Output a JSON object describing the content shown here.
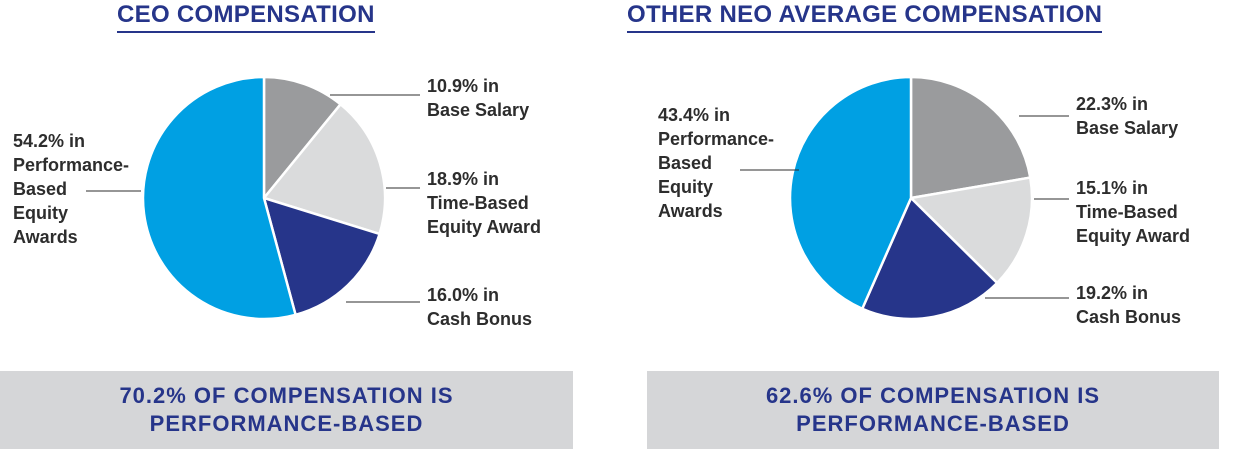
{
  "chart_data": [
    {
      "type": "pie",
      "title": "CEO COMPENSATION",
      "slices": [
        {
          "label": "Base Salary",
          "value": 10.9,
          "color": "#9a9b9d",
          "display": [
            "10.9% in",
            "Base Salary"
          ]
        },
        {
          "label": "Time-Based Equity Award",
          "value": 18.9,
          "color": "#dadbdc",
          "display": [
            "18.9% in",
            "Time-Based",
            "Equity Award"
          ]
        },
        {
          "label": "Cash Bonus",
          "value": 16.0,
          "color": "#26358a",
          "display": [
            "16.0% in",
            "Cash Bonus"
          ]
        },
        {
          "label": "Performance-Based Equity Awards",
          "value": 54.2,
          "color": "#00a0e3",
          "display": [
            "54.2% in",
            "Performance-",
            "Based",
            "Equity",
            "Awards"
          ]
        }
      ],
      "callout": [
        "70.2% OF COMPENSATION IS",
        "PERFORMANCE-BASED"
      ]
    },
    {
      "type": "pie",
      "title": "OTHER NEO AVERAGE COMPENSATION",
      "slices": [
        {
          "label": "Base Salary",
          "value": 22.3,
          "color": "#9a9b9d",
          "display": [
            "22.3% in",
            "Base Salary"
          ]
        },
        {
          "label": "Time-Based Equity Award",
          "value": 15.1,
          "color": "#dadbdc",
          "display": [
            "15.1% in",
            "Time-Based",
            "Equity Award"
          ]
        },
        {
          "label": "Cash Bonus",
          "value": 19.2,
          "color": "#26358a",
          "display": [
            "19.2% in",
            "Cash Bonus"
          ]
        },
        {
          "label": "Performance-Based Equity Awards",
          "value": 43.4,
          "color": "#00a0e3",
          "display": [
            "43.4% in",
            "Performance-",
            "Based",
            "Equity",
            "Awards"
          ]
        }
      ],
      "callout": [
        "62.6% OF COMPENSATION IS",
        "PERFORMANCE-BASED"
      ]
    }
  ]
}
